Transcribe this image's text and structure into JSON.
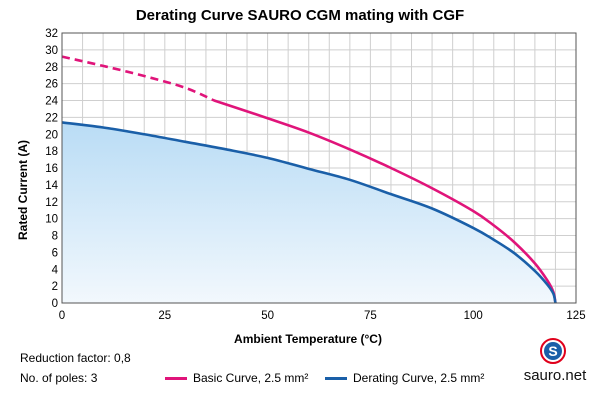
{
  "chart_data": {
    "type": "line",
    "title": "Derating Curve SAURO CGM mating with CGF",
    "xlabel": "Ambient Temperature (°C)",
    "ylabel": "Rated Current (A)",
    "xlim": [
      0,
      125
    ],
    "ylim": [
      0,
      32
    ],
    "xticks": [
      0,
      25,
      50,
      75,
      100,
      125
    ],
    "yticks": [
      0,
      2,
      4,
      6,
      8,
      10,
      12,
      14,
      16,
      18,
      20,
      22,
      24,
      26,
      28,
      30,
      32
    ],
    "grid": true,
    "series": [
      {
        "name": "Basic Curve, 2.5 mm²",
        "color": "#e0147a",
        "dashed_until_x": 37,
        "x": [
          0,
          10,
          20,
          30,
          37,
          50,
          60,
          70,
          80,
          90,
          100,
          105,
          110,
          115,
          118,
          119.5,
          120
        ],
        "y": [
          29.2,
          28.1,
          26.9,
          25.5,
          24.0,
          21.9,
          20.2,
          18.2,
          16.0,
          13.6,
          10.9,
          9.2,
          7.2,
          4.7,
          2.7,
          1.3,
          0
        ]
      },
      {
        "name": "Derating Curve, 2.5 mm²",
        "color": "#1a5fa8",
        "fill": "area",
        "x": [
          0,
          10,
          20,
          30,
          40,
          50,
          60,
          70,
          80,
          90,
          100,
          105,
          110,
          115,
          118,
          119.5,
          120
        ],
        "y": [
          21.4,
          20.8,
          20.0,
          19.1,
          18.2,
          17.2,
          15.9,
          14.6,
          12.9,
          11.2,
          8.9,
          7.5,
          5.9,
          3.8,
          2.2,
          1.1,
          0
        ]
      }
    ]
  },
  "info": {
    "reduction_factor": "Reduction factor: 0,8",
    "poles": "No. of poles: 3"
  },
  "logo": {
    "mark": "S",
    "text": "sauro.net",
    "color": "#e0001b"
  }
}
